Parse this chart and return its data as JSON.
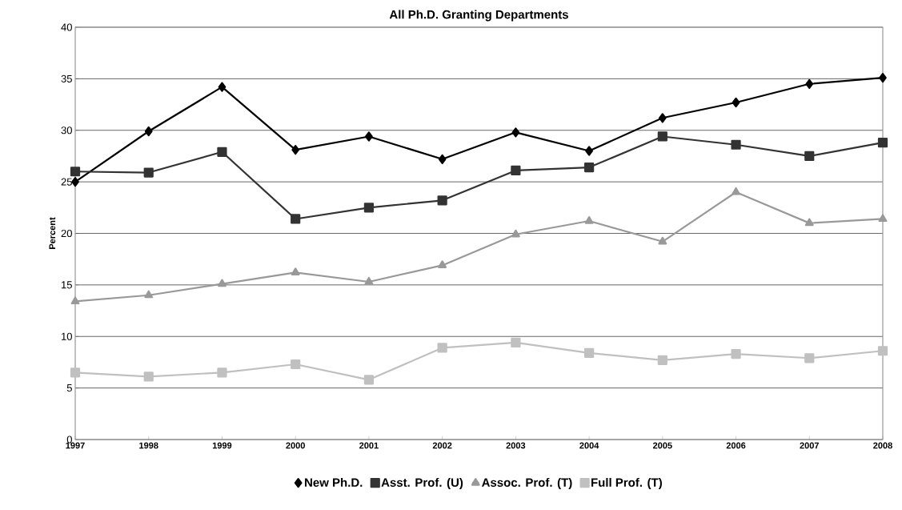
{
  "chart_data": {
    "type": "line",
    "title": "All Ph.D. Granting Departments",
    "ylabel": "Percent",
    "x": [
      1997,
      1998,
      1999,
      2000,
      2001,
      2002,
      2003,
      2004,
      2005,
      2006,
      2007,
      2008
    ],
    "series": [
      {
        "name": "New Ph.D.",
        "color": "#000000",
        "marker": "diamond",
        "values": [
          25.0,
          29.9,
          34.2,
          28.1,
          29.4,
          27.2,
          29.8,
          28.0,
          31.2,
          32.7,
          34.5,
          35.1
        ]
      },
      {
        "name": "Asst. Prof. (U)",
        "color": "#333333",
        "marker": "square",
        "values": [
          26.0,
          25.9,
          27.9,
          21.4,
          22.5,
          23.2,
          26.1,
          26.4,
          29.4,
          28.6,
          27.5,
          28.8
        ]
      },
      {
        "name": "Assoc. Prof. (T)",
        "color": "#999999",
        "marker": "triangle",
        "values": [
          13.4,
          14.0,
          15.1,
          16.2,
          15.3,
          16.9,
          19.9,
          21.2,
          19.2,
          24.0,
          21.0,
          21.4
        ]
      },
      {
        "name": "Full Prof. (T)",
        "color": "#c0c0c0",
        "marker": "square",
        "values": [
          6.5,
          6.1,
          6.5,
          7.3,
          5.8,
          8.9,
          9.4,
          8.4,
          7.7,
          8.3,
          7.9,
          8.6
        ]
      }
    ],
    "xlim": [
      1997,
      2008
    ],
    "xticks": [
      1997,
      1998,
      1999,
      2000,
      2001,
      2002,
      2003,
      2004,
      2005,
      2006,
      2007,
      2008
    ],
    "ylim": [
      0,
      40
    ],
    "yticks": [
      0,
      5,
      10,
      15,
      20,
      25,
      30,
      35,
      40
    ],
    "grid": "y",
    "legend": "bottom",
    "line_style": "solid"
  }
}
